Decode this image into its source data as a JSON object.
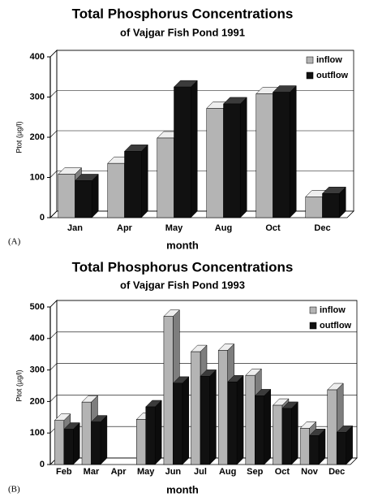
{
  "chart_data": [
    {
      "type": "bar3d",
      "title": "Total Phosphorus Concentrations",
      "subtitle": "of Vajgar Fish Pond 1991",
      "panel_label": "(A)",
      "xlabel": "month",
      "ylabel": "Ptot (µg/l)",
      "categories": [
        "Jan",
        "Apr",
        "May",
        "Aug",
        "Oct",
        "Dec"
      ],
      "series": [
        {
          "name": "inflow",
          "color": "#b4b4b4",
          "values": [
            108,
            135,
            198,
            272,
            308,
            52
          ]
        },
        {
          "name": "outflow",
          "color": "#111111",
          "values": [
            92,
            165,
            325,
            283,
            312,
            60
          ]
        }
      ],
      "ylim": [
        0,
        400
      ],
      "yticks": [
        0,
        100,
        200,
        300,
        400
      ],
      "grid": true,
      "legend": "top-right"
    },
    {
      "type": "bar3d",
      "title": "Total Phosphorus Concentrations",
      "subtitle": "of Vajgar Fish Pond 1993",
      "panel_label": "(B)",
      "xlabel": "month",
      "ylabel": "Ptot (µg/l)",
      "categories": [
        "Feb",
        "Mar",
        "Apr",
        "May",
        "Jun",
        "Jul",
        "Aug",
        "Sep",
        "Oct",
        "Nov",
        "Dec"
      ],
      "series": [
        {
          "name": "inflow",
          "color": "#b4b4b4",
          "values": [
            140,
            198,
            null,
            143,
            470,
            358,
            362,
            283,
            188,
            115,
            237
          ]
        },
        {
          "name": "outflow",
          "color": "#111111",
          "values": [
            112,
            135,
            null,
            183,
            258,
            280,
            262,
            218,
            178,
            92,
            102
          ]
        }
      ],
      "ylim": [
        0,
        500
      ],
      "yticks": [
        0,
        100,
        200,
        300,
        400,
        500
      ],
      "grid": true,
      "legend": "top-right"
    }
  ]
}
